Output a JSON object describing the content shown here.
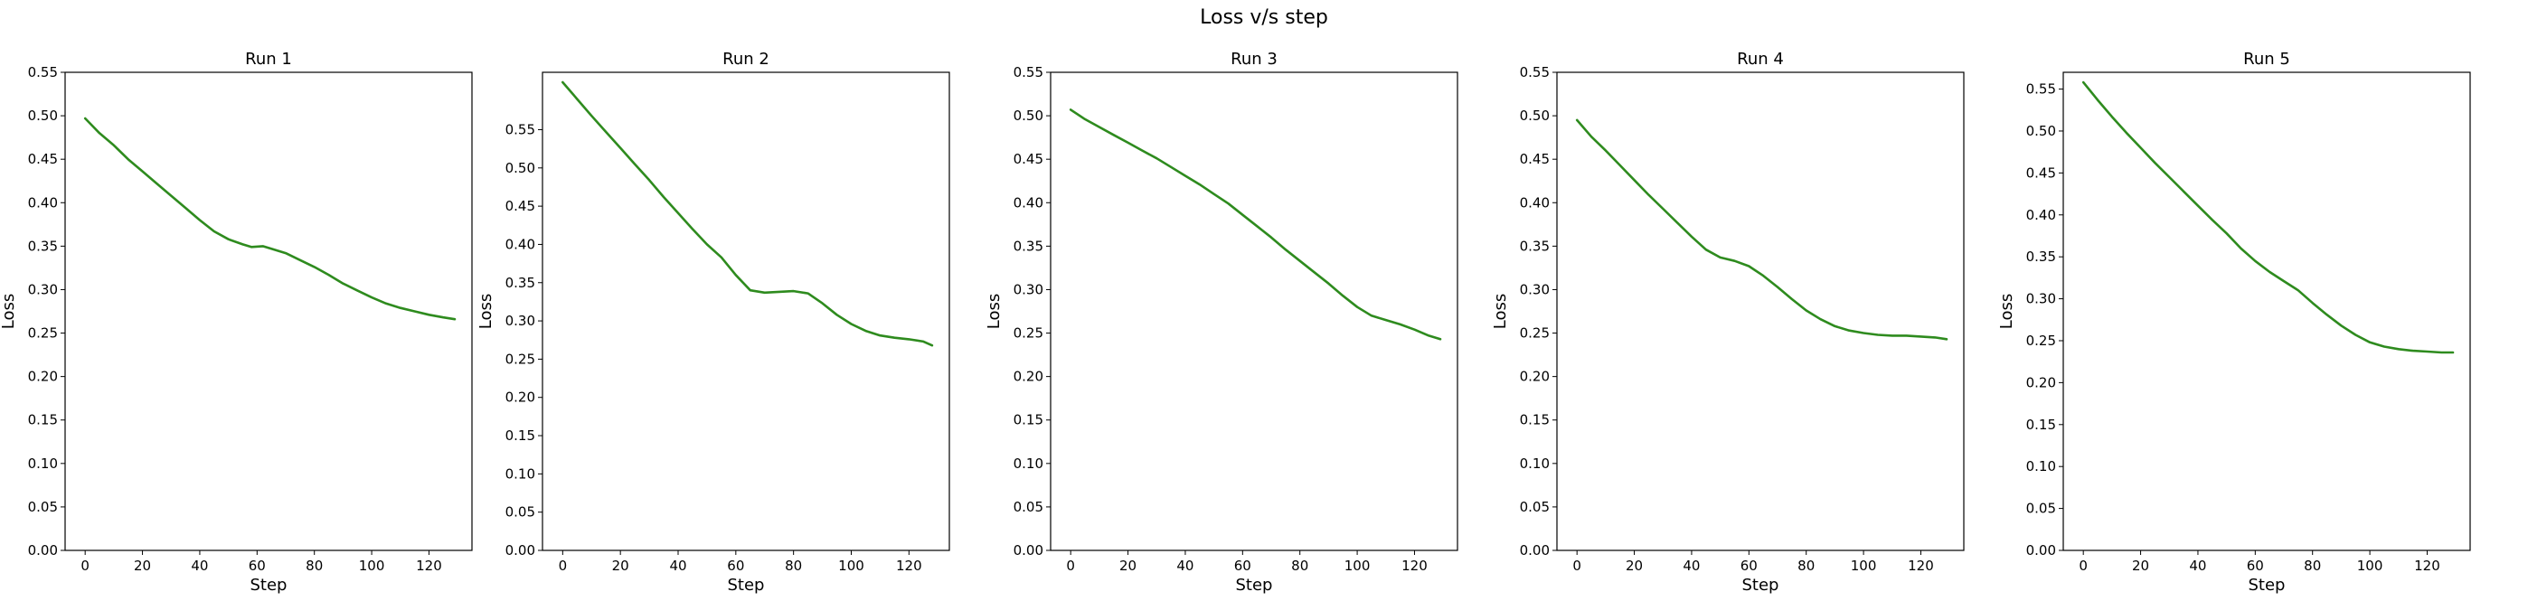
{
  "figure": {
    "title": "Loss v/s step"
  },
  "series_color": "#2e8b1e",
  "chart_data": [
    {
      "type": "line",
      "title": "Run 1",
      "xlabel": "Step",
      "ylabel": "Loss",
      "xlim": [
        -7,
        135
      ],
      "ylim": [
        0.0,
        0.55
      ],
      "xticks": [
        0,
        20,
        40,
        60,
        80,
        100,
        120
      ],
      "yticks": [
        0.0,
        0.05,
        0.1,
        0.15,
        0.2,
        0.25,
        0.3,
        0.35,
        0.4,
        0.45,
        0.5,
        0.55
      ],
      "series": [
        {
          "x": [
            0,
            5,
            10,
            15,
            20,
            25,
            30,
            35,
            40,
            45,
            50,
            55,
            58,
            62,
            65,
            70,
            75,
            80,
            85,
            90,
            95,
            100,
            105,
            110,
            115,
            120,
            125,
            129
          ],
          "y": [
            0.497,
            0.48,
            0.466,
            0.45,
            0.436,
            0.422,
            0.408,
            0.394,
            0.38,
            0.367,
            0.358,
            0.352,
            0.349,
            0.35,
            0.347,
            0.342,
            0.334,
            0.326,
            0.317,
            0.307,
            0.299,
            0.291,
            0.284,
            0.279,
            0.275,
            0.271,
            0.268,
            0.266
          ]
        }
      ]
    },
    {
      "type": "line",
      "title": "Run 2",
      "xlabel": "Step",
      "ylabel": "Loss",
      "xlim": [
        -7,
        134
      ],
      "ylim": [
        0.0,
        0.625
      ],
      "xticks": [
        0,
        20,
        40,
        60,
        80,
        100,
        120
      ],
      "yticks": [
        0.0,
        0.05,
        0.1,
        0.15,
        0.2,
        0.25,
        0.3,
        0.35,
        0.4,
        0.45,
        0.5,
        0.55
      ],
      "series": [
        {
          "x": [
            0,
            5,
            10,
            15,
            20,
            25,
            30,
            35,
            40,
            45,
            50,
            55,
            60,
            65,
            70,
            75,
            80,
            85,
            90,
            95,
            100,
            105,
            110,
            115,
            120,
            125,
            128
          ],
          "y": [
            0.612,
            0.59,
            0.568,
            0.547,
            0.526,
            0.505,
            0.484,
            0.462,
            0.441,
            0.42,
            0.4,
            0.383,
            0.36,
            0.34,
            0.337,
            0.338,
            0.339,
            0.336,
            0.323,
            0.308,
            0.296,
            0.287,
            0.281,
            0.278,
            0.276,
            0.273,
            0.268
          ]
        }
      ]
    },
    {
      "type": "line",
      "title": "Run 3",
      "xlabel": "Step",
      "ylabel": "Loss",
      "xlim": [
        -7,
        135
      ],
      "ylim": [
        0.0,
        0.55
      ],
      "xticks": [
        0,
        20,
        40,
        60,
        80,
        100,
        120
      ],
      "yticks": [
        0.0,
        0.05,
        0.1,
        0.15,
        0.2,
        0.25,
        0.3,
        0.35,
        0.4,
        0.45,
        0.5,
        0.55
      ],
      "series": [
        {
          "x": [
            0,
            5,
            10,
            15,
            20,
            25,
            30,
            35,
            40,
            45,
            50,
            55,
            60,
            65,
            70,
            75,
            80,
            85,
            90,
            95,
            100,
            105,
            110,
            115,
            120,
            125,
            129
          ],
          "y": [
            0.507,
            0.496,
            0.487,
            0.478,
            0.469,
            0.46,
            0.451,
            0.441,
            0.431,
            0.421,
            0.41,
            0.399,
            0.386,
            0.373,
            0.36,
            0.346,
            0.333,
            0.32,
            0.307,
            0.293,
            0.28,
            0.27,
            0.265,
            0.26,
            0.254,
            0.247,
            0.243
          ]
        }
      ]
    },
    {
      "type": "line",
      "title": "Run 4",
      "xlabel": "Step",
      "ylabel": "Loss",
      "xlim": [
        -7,
        135
      ],
      "ylim": [
        0.0,
        0.55
      ],
      "xticks": [
        0,
        20,
        40,
        60,
        80,
        100,
        120
      ],
      "yticks": [
        0.0,
        0.05,
        0.1,
        0.15,
        0.2,
        0.25,
        0.3,
        0.35,
        0.4,
        0.45,
        0.5,
        0.55
      ],
      "series": [
        {
          "x": [
            0,
            5,
            10,
            15,
            20,
            25,
            30,
            35,
            40,
            45,
            50,
            55,
            60,
            65,
            70,
            75,
            80,
            85,
            90,
            95,
            100,
            105,
            110,
            115,
            120,
            125,
            129
          ],
          "y": [
            0.495,
            0.476,
            0.46,
            0.443,
            0.426,
            0.409,
            0.393,
            0.377,
            0.361,
            0.346,
            0.337,
            0.333,
            0.327,
            0.316,
            0.303,
            0.289,
            0.276,
            0.266,
            0.258,
            0.253,
            0.25,
            0.248,
            0.247,
            0.247,
            0.246,
            0.245,
            0.243
          ]
        }
      ]
    },
    {
      "type": "line",
      "title": "Run 5",
      "xlabel": "Step",
      "ylabel": "Loss",
      "xlim": [
        -7,
        135
      ],
      "ylim": [
        0.0,
        0.57
      ],
      "xticks": [
        0,
        20,
        40,
        60,
        80,
        100,
        120
      ],
      "yticks": [
        0.0,
        0.05,
        0.1,
        0.15,
        0.2,
        0.25,
        0.3,
        0.35,
        0.4,
        0.45,
        0.5,
        0.55
      ],
      "series": [
        {
          "x": [
            0,
            5,
            10,
            15,
            20,
            25,
            30,
            35,
            40,
            45,
            50,
            55,
            60,
            65,
            70,
            75,
            80,
            85,
            90,
            95,
            100,
            105,
            110,
            115,
            120,
            125,
            129
          ],
          "y": [
            0.558,
            0.537,
            0.517,
            0.498,
            0.48,
            0.462,
            0.445,
            0.428,
            0.411,
            0.394,
            0.378,
            0.36,
            0.345,
            0.332,
            0.321,
            0.31,
            0.295,
            0.281,
            0.268,
            0.257,
            0.248,
            0.243,
            0.24,
            0.238,
            0.237,
            0.236,
            0.236
          ]
        }
      ]
    }
  ]
}
